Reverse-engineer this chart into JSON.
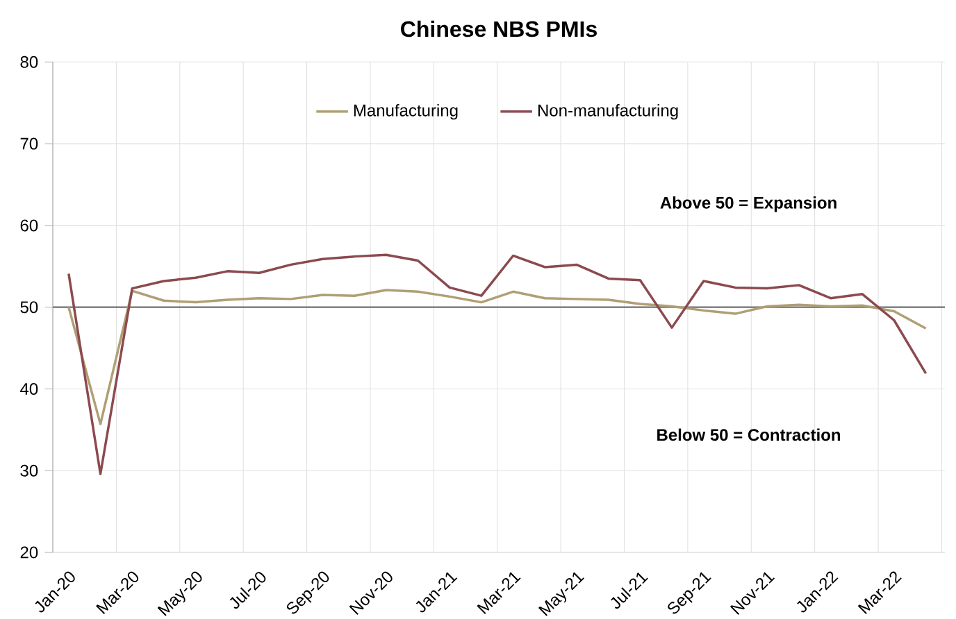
{
  "chart_data": {
    "type": "line",
    "title": "Chinese NBS PMIs",
    "categories": [
      "Jan-20",
      null,
      "Mar-20",
      null,
      "May-20",
      null,
      "Jul-20",
      null,
      "Sep-20",
      null,
      "Nov-20",
      null,
      "Jan-21",
      null,
      "Mar-21",
      null,
      "May-21",
      null,
      "Jul-21",
      null,
      "Sep-21",
      null,
      "Nov-21",
      null,
      "Jan-22",
      null,
      "Mar-22",
      null
    ],
    "series": [
      {
        "name": "Manufacturing",
        "color": "#b09f74",
        "values": [
          50.0,
          35.7,
          52.0,
          50.8,
          50.6,
          50.9,
          51.1,
          51.0,
          51.5,
          51.4,
          52.1,
          51.9,
          51.3,
          50.6,
          51.9,
          51.1,
          51.0,
          50.9,
          50.4,
          50.1,
          49.6,
          49.2,
          50.1,
          50.3,
          50.1,
          50.2,
          49.5,
          47.4
        ]
      },
      {
        "name": "Non-manufacturing",
        "color": "#8b4a4f",
        "values": [
          54.1,
          29.6,
          52.3,
          53.2,
          53.6,
          54.4,
          54.2,
          55.2,
          55.9,
          56.2,
          56.4,
          55.7,
          52.4,
          51.4,
          56.3,
          54.9,
          55.2,
          53.5,
          53.3,
          47.5,
          53.2,
          52.4,
          52.3,
          52.7,
          51.1,
          51.6,
          48.4,
          41.9
        ]
      }
    ],
    "ylim": [
      20,
      80
    ],
    "yticks": [
      20,
      30,
      40,
      50,
      60,
      70,
      80
    ],
    "ref_lines": [
      {
        "axis": "y",
        "value": 50,
        "color": "#707070"
      }
    ],
    "annotations": [
      "Above 50 = Expansion",
      "Below 50 = Contraction"
    ],
    "grid": true,
    "legend": "top",
    "marker": "none",
    "line_style": "solid"
  }
}
